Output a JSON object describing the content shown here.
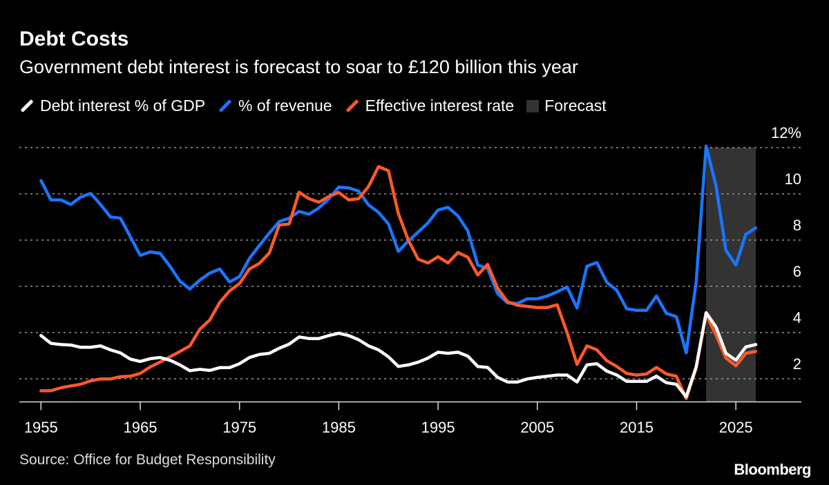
{
  "title": "Debt Costs",
  "subtitle": "Government debt interest is forecast to soar to £120 billion this year",
  "source": "Source: Office for Budget Responsibility",
  "logo": "Bloomberg",
  "chart_data": {
    "type": "line",
    "title": "Debt Costs",
    "subtitle": "Government debt interest is forecast to soar to £120 billion this year",
    "xlabel": "",
    "ylabel": "",
    "xlim": [
      1955,
      2027
    ],
    "ylim": [
      1,
      12
    ],
    "x_ticks": [
      "1955",
      "1965",
      "1975",
      "1985",
      "1995",
      "2005",
      "2015",
      "2025"
    ],
    "y_ticks": [
      "12%",
      "10",
      "8",
      "6",
      "4",
      "2"
    ],
    "y_tick_values": [
      12,
      10,
      8,
      6,
      4,
      2
    ],
    "grid": true,
    "legend_placement": "top-left",
    "y_axis_side": "right",
    "forecast": {
      "label": "Forecast",
      "from": 2022,
      "to": 2027,
      "color": "#333333"
    },
    "x": [
      1955,
      1956,
      1957,
      1958,
      1959,
      1960,
      1961,
      1962,
      1963,
      1964,
      1965,
      1966,
      1967,
      1968,
      1969,
      1970,
      1971,
      1972,
      1973,
      1974,
      1975,
      1976,
      1977,
      1978,
      1979,
      1980,
      1981,
      1982,
      1983,
      1984,
      1985,
      1986,
      1987,
      1988,
      1989,
      1990,
      1991,
      1992,
      1993,
      1994,
      1995,
      1996,
      1997,
      1998,
      1999,
      2000,
      2001,
      2002,
      2003,
      2004,
      2005,
      2006,
      2007,
      2008,
      2009,
      2010,
      2011,
      2012,
      2013,
      2014,
      2015,
      2016,
      2017,
      2018,
      2019,
      2020,
      2021,
      2022,
      2023,
      2024,
      2025,
      2026,
      2027
    ],
    "series": [
      {
        "name": "Debt interest % of GDP",
        "color": "#ffffff",
        "values": [
          3.87,
          3.53,
          3.48,
          3.46,
          3.36,
          3.36,
          3.42,
          3.25,
          3.12,
          2.85,
          2.75,
          2.87,
          2.92,
          2.8,
          2.6,
          2.35,
          2.41,
          2.36,
          2.48,
          2.48,
          2.65,
          2.92,
          3.05,
          3.1,
          3.32,
          3.5,
          3.81,
          3.74,
          3.74,
          3.87,
          3.97,
          3.87,
          3.69,
          3.42,
          3.25,
          2.95,
          2.53,
          2.6,
          2.72,
          2.9,
          3.15,
          3.1,
          3.15,
          2.98,
          2.53,
          2.49,
          2.06,
          1.86,
          1.86,
          1.99,
          2.06,
          2.11,
          2.16,
          2.16,
          1.86,
          2.6,
          2.65,
          2.33,
          2.16,
          1.89,
          1.89,
          1.89,
          2.11,
          1.83,
          1.76,
          1.22,
          2.51,
          4.86,
          4.24,
          3.1,
          2.8,
          3.38,
          3.48
        ]
      },
      {
        "name": "% of revenue",
        "color": "#1a75ff",
        "values": [
          10.58,
          9.74,
          9.74,
          9.54,
          9.86,
          10.02,
          9.54,
          9.0,
          8.95,
          8.15,
          7.34,
          7.49,
          7.43,
          6.87,
          6.22,
          5.88,
          6.27,
          6.57,
          6.75,
          6.19,
          6.42,
          7.21,
          7.76,
          8.3,
          8.8,
          8.95,
          9.24,
          9.12,
          9.39,
          9.79,
          10.29,
          10.26,
          10.12,
          9.52,
          9.2,
          8.7,
          7.51,
          7.96,
          8.35,
          8.75,
          9.3,
          9.42,
          9.05,
          8.4,
          6.92,
          6.77,
          5.68,
          5.28,
          5.26,
          5.46,
          5.46,
          5.58,
          5.76,
          5.97,
          5.06,
          6.87,
          7.03,
          6.17,
          5.83,
          5.03,
          4.96,
          4.96,
          5.58,
          4.83,
          4.69,
          3.12,
          6.17,
          12.07,
          10.34,
          7.56,
          6.92,
          8.25,
          8.53
        ]
      },
      {
        "name": "Effective interest rate",
        "color": "#ff5a26",
        "values": [
          1.48,
          1.48,
          1.61,
          1.69,
          1.76,
          1.91,
          1.99,
          1.99,
          2.09,
          2.11,
          2.23,
          2.51,
          2.72,
          2.95,
          3.18,
          3.42,
          4.14,
          4.54,
          5.3,
          5.8,
          6.12,
          6.75,
          6.99,
          7.44,
          8.65,
          8.7,
          10.07,
          9.79,
          9.64,
          9.89,
          10.06,
          9.74,
          9.79,
          10.32,
          11.18,
          11.0,
          9.15,
          8.0,
          7.17,
          7.01,
          7.28,
          7.01,
          7.46,
          7.26,
          6.49,
          6.95,
          5.92,
          5.33,
          5.18,
          5.13,
          5.08,
          5.08,
          5.2,
          3.99,
          2.62,
          3.42,
          3.25,
          2.78,
          2.53,
          2.23,
          2.16,
          2.21,
          2.49,
          2.21,
          2.11,
          1.14,
          2.46,
          4.78,
          3.89,
          2.9,
          2.56,
          3.1,
          3.18
        ]
      }
    ]
  }
}
